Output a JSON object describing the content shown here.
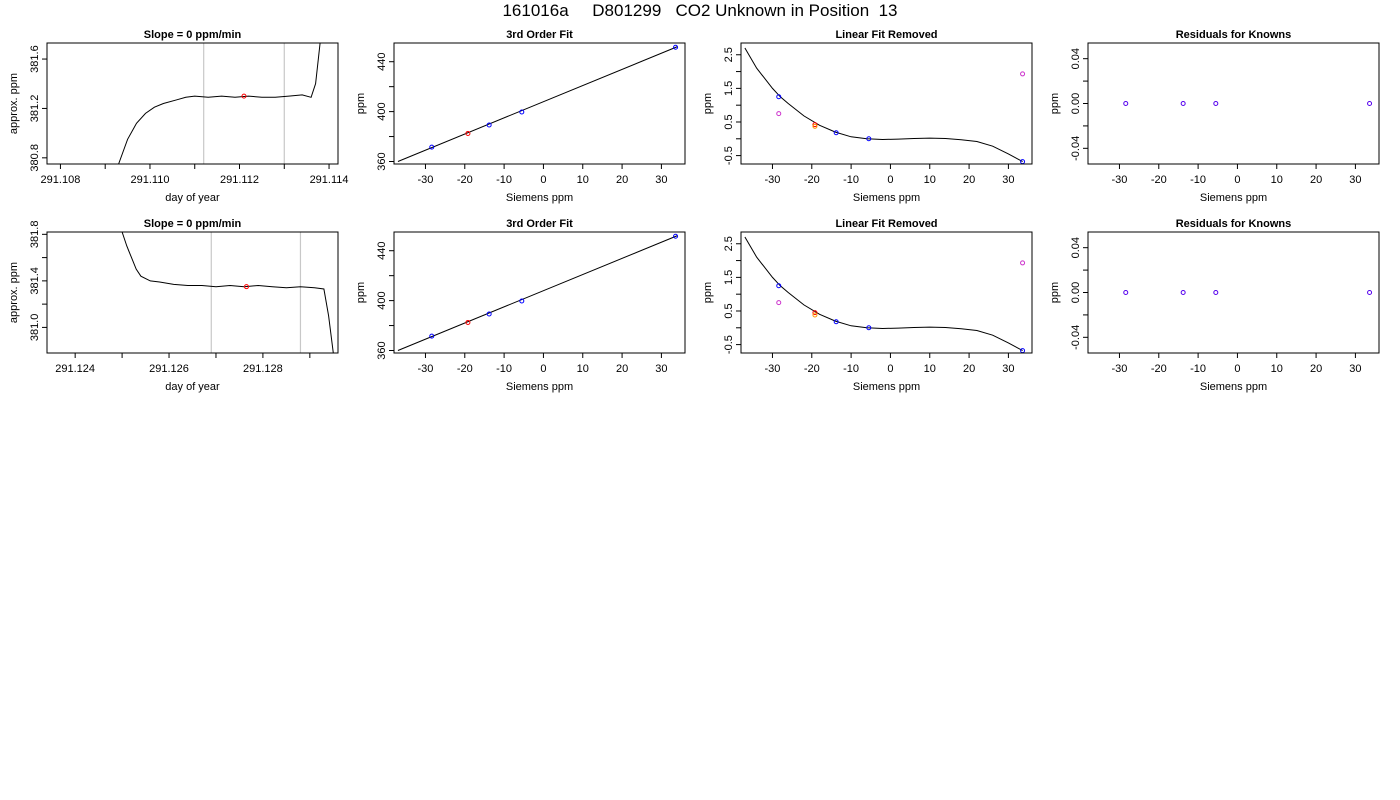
{
  "page": {
    "title": "161016a     D801299   CO2 Unknown in Position  13"
  },
  "chart_data": [
    {
      "type": "line",
      "title": "Slope =  0  ppm/min",
      "xlabel": "day of year",
      "ylabel": "approx. ppm",
      "xlim": [
        291.1077,
        291.1142
      ],
      "ylim": [
        380.75,
        381.73
      ],
      "xticks": [
        291.108,
        291.109,
        291.11,
        291.111,
        291.112,
        291.113,
        291.114
      ],
      "xticklabels": [
        "291.108",
        "",
        "291.110",
        "",
        "291.112",
        "",
        "291.114"
      ],
      "yticks": [
        380.8,
        381.2,
        381.6
      ],
      "yticklabels": [
        "380.8",
        "381.2",
        "381.6"
      ],
      "vlines": [
        291.1112,
        291.113
      ],
      "trace": [
        [
          291.1093,
          380.75
        ],
        [
          291.1095,
          380.95
        ],
        [
          291.1097,
          381.08
        ],
        [
          291.1099,
          381.16
        ],
        [
          291.1101,
          381.21
        ],
        [
          291.1103,
          381.24
        ],
        [
          291.1106,
          381.27
        ],
        [
          291.1108,
          381.29
        ],
        [
          291.111,
          381.3
        ],
        [
          291.1113,
          381.29
        ],
        [
          291.1116,
          381.3
        ],
        [
          291.1119,
          381.29
        ],
        [
          291.1122,
          381.3
        ],
        [
          291.1125,
          381.29
        ],
        [
          291.1128,
          381.29
        ],
        [
          291.1131,
          381.3
        ],
        [
          291.1134,
          381.31
        ],
        [
          291.1136,
          381.29
        ],
        [
          291.1137,
          381.4
        ],
        [
          291.1138,
          381.73
        ]
      ],
      "point": {
        "x": 291.1121,
        "y": 381.3,
        "color": "#ff0000"
      }
    },
    {
      "type": "scatter",
      "title": "3rd Order Fit",
      "xlabel": "Siemens ppm",
      "ylabel": "ppm",
      "xlim": [
        -38,
        36
      ],
      "ylim": [
        358,
        455
      ],
      "xticks": [
        -30,
        -20,
        -10,
        0,
        10,
        20,
        30
      ],
      "xticklabels": [
        "-30",
        "-20",
        "-10",
        "0",
        "10",
        "20",
        "30"
      ],
      "yticks": [
        360,
        400,
        440
      ],
      "yticklabels": [
        "360",
        "400",
        "440"
      ],
      "yminorticks": [
        380,
        420
      ],
      "line": [
        [
          -37,
          360
        ],
        [
          34,
          452
        ]
      ],
      "points": [
        {
          "x": -28.4,
          "y": 371.5,
          "color": "#0000ff"
        },
        {
          "x": -19.2,
          "y": 382.5,
          "color": "#ff0000"
        },
        {
          "x": -13.8,
          "y": 389.3,
          "color": "#0000ff"
        },
        {
          "x": -5.5,
          "y": 399.7,
          "color": "#0000ff"
        },
        {
          "x": 33.6,
          "y": 451.6,
          "color": "#0000ff"
        }
      ]
    },
    {
      "type": "scatter",
      "title": "Linear Fit Removed",
      "xlabel": "Siemens ppm",
      "ylabel": "ppm",
      "xlim": [
        -38,
        36
      ],
      "ylim": [
        -0.75,
        2.85
      ],
      "xticks": [
        -30,
        -20,
        -10,
        0,
        10,
        20,
        30
      ],
      "xticklabels": [
        "-30",
        "-20",
        "-10",
        "0",
        "10",
        "20",
        "30"
      ],
      "yticks": [
        -0.5,
        0.5,
        1.5,
        2.5
      ],
      "yticklabels": [
        "-0.5",
        "0.5",
        "1.5",
        "2.5"
      ],
      "yminorticks": [
        0,
        1,
        2
      ],
      "curve": [
        [
          -37,
          2.7
        ],
        [
          -34,
          2.1
        ],
        [
          -30,
          1.5
        ],
        [
          -28,
          1.25
        ],
        [
          -26,
          1.05
        ],
        [
          -22,
          0.68
        ],
        [
          -18,
          0.4
        ],
        [
          -14,
          0.2
        ],
        [
          -10,
          0.06
        ],
        [
          -6,
          0.0
        ],
        [
          -2,
          -0.02
        ],
        [
          2,
          -0.01
        ],
        [
          6,
          0.01
        ],
        [
          10,
          0.02
        ],
        [
          14,
          0.01
        ],
        [
          18,
          -0.03
        ],
        [
          22,
          -0.08
        ],
        [
          26,
          -0.22
        ],
        [
          30,
          -0.45
        ],
        [
          33.6,
          -0.68
        ]
      ],
      "points": [
        {
          "x": -28.4,
          "y": 1.25,
          "color": "#0000ff"
        },
        {
          "x": -28.4,
          "y": 0.75,
          "color": "#cc33cc"
        },
        {
          "x": -19.2,
          "y": 0.42,
          "color": "#ff0000"
        },
        {
          "x": -19.2,
          "y": 0.37,
          "color": "#ff9900"
        },
        {
          "x": -13.8,
          "y": 0.18,
          "color": "#0000ff"
        },
        {
          "x": -5.5,
          "y": 0.0,
          "color": "#0000ff"
        },
        {
          "x": 33.6,
          "y": 1.93,
          "color": "#cc33cc"
        },
        {
          "x": 33.6,
          "y": -0.68,
          "color": "#0000ff"
        }
      ]
    },
    {
      "type": "scatter",
      "title": "Residuals for Knowns",
      "xlabel": "Siemens ppm",
      "ylabel": "ppm",
      "xlim": [
        -38,
        36
      ],
      "ylim": [
        -0.054,
        0.054
      ],
      "xticks": [
        -30,
        -20,
        -10,
        0,
        10,
        20,
        30
      ],
      "xticklabels": [
        "-30",
        "-20",
        "-10",
        "0",
        "10",
        "20",
        "30"
      ],
      "yticks": [
        -0.04,
        0.0,
        0.04
      ],
      "yticklabels": [
        "-0.04",
        "0.00",
        "0.04"
      ],
      "yminorticks": [
        -0.02,
        0.02
      ],
      "points": [
        {
          "x": -28.4,
          "y": 0.0,
          "color": "#5500ee"
        },
        {
          "x": -13.8,
          "y": 0.0,
          "color": "#5500ee"
        },
        {
          "x": -5.5,
          "y": 0.0,
          "color": "#5500ee"
        },
        {
          "x": 33.6,
          "y": 0.0,
          "color": "#5500ee"
        }
      ]
    },
    {
      "type": "line",
      "title": "Slope =  0  ppm/min",
      "xlabel": "day of year",
      "ylabel": "approx. ppm",
      "xlim": [
        291.1234,
        291.1296
      ],
      "ylim": [
        380.78,
        381.82
      ],
      "xticks": [
        291.124,
        291.125,
        291.126,
        291.127,
        291.128,
        291.129
      ],
      "xticklabels": [
        "291.124",
        "",
        "291.126",
        "",
        "291.128",
        ""
      ],
      "yticks": [
        381.0,
        381.4,
        381.8
      ],
      "yticklabels": [
        "381.0",
        "381.4",
        "381.8"
      ],
      "yminorticks": [
        381.2,
        381.6
      ],
      "vlines": [
        291.1269,
        291.1288
      ],
      "trace": [
        [
          291.125,
          381.82
        ],
        [
          291.1251,
          381.7
        ],
        [
          291.1252,
          381.6
        ],
        [
          291.1253,
          381.5
        ],
        [
          291.1254,
          381.44
        ],
        [
          291.1256,
          381.4
        ],
        [
          291.1258,
          381.39
        ],
        [
          291.1261,
          381.37
        ],
        [
          291.1264,
          381.36
        ],
        [
          291.1267,
          381.36
        ],
        [
          291.127,
          381.35
        ],
        [
          291.1273,
          381.36
        ],
        [
          291.1276,
          381.35
        ],
        [
          291.1279,
          381.36
        ],
        [
          291.1282,
          381.35
        ],
        [
          291.1285,
          381.34
        ],
        [
          291.1288,
          381.35
        ],
        [
          291.1291,
          381.34
        ],
        [
          291.1293,
          381.33
        ],
        [
          291.1294,
          381.1
        ],
        [
          291.1295,
          380.78
        ]
      ],
      "point": {
        "x": 291.12765,
        "y": 381.35,
        "color": "#ff0000"
      }
    },
    {
      "type": "scatter",
      "title": "3rd Order Fit",
      "xlabel": "Siemens ppm",
      "ylabel": "ppm",
      "xlim": [
        -38,
        36
      ],
      "ylim": [
        358,
        455
      ],
      "xticks": [
        -30,
        -20,
        -10,
        0,
        10,
        20,
        30
      ],
      "xticklabels": [
        "-30",
        "-20",
        "-10",
        "0",
        "10",
        "20",
        "30"
      ],
      "yticks": [
        360,
        400,
        440
      ],
      "yticklabels": [
        "360",
        "400",
        "440"
      ],
      "yminorticks": [
        380,
        420
      ],
      "line": [
        [
          -37,
          360
        ],
        [
          34,
          452
        ]
      ],
      "points": [
        {
          "x": -28.4,
          "y": 371.5,
          "color": "#0000ff"
        },
        {
          "x": -19.2,
          "y": 382.5,
          "color": "#ff0000"
        },
        {
          "x": -13.8,
          "y": 389.3,
          "color": "#0000ff"
        },
        {
          "x": -5.5,
          "y": 399.7,
          "color": "#0000ff"
        },
        {
          "x": 33.6,
          "y": 451.6,
          "color": "#0000ff"
        }
      ]
    },
    {
      "type": "scatter",
      "title": "Linear Fit Removed",
      "xlabel": "Siemens ppm",
      "ylabel": "ppm",
      "xlim": [
        -38,
        36
      ],
      "ylim": [
        -0.75,
        2.85
      ],
      "xticks": [
        -30,
        -20,
        -10,
        0,
        10,
        20,
        30
      ],
      "xticklabels": [
        "-30",
        "-20",
        "-10",
        "0",
        "10",
        "20",
        "30"
      ],
      "yticks": [
        -0.5,
        0.5,
        1.5,
        2.5
      ],
      "yticklabels": [
        "-0.5",
        "0.5",
        "1.5",
        "2.5"
      ],
      "yminorticks": [
        0,
        1,
        2
      ],
      "curve": [
        [
          -37,
          2.7
        ],
        [
          -34,
          2.1
        ],
        [
          -30,
          1.5
        ],
        [
          -28,
          1.25
        ],
        [
          -26,
          1.05
        ],
        [
          -22,
          0.68
        ],
        [
          -18,
          0.4
        ],
        [
          -14,
          0.2
        ],
        [
          -10,
          0.06
        ],
        [
          -6,
          0.0
        ],
        [
          -2,
          -0.02
        ],
        [
          2,
          -0.01
        ],
        [
          6,
          0.01
        ],
        [
          10,
          0.02
        ],
        [
          14,
          0.01
        ],
        [
          18,
          -0.03
        ],
        [
          22,
          -0.08
        ],
        [
          26,
          -0.22
        ],
        [
          30,
          -0.45
        ],
        [
          33.6,
          -0.68
        ]
      ],
      "points": [
        {
          "x": -28.4,
          "y": 1.25,
          "color": "#0000ff"
        },
        {
          "x": -28.4,
          "y": 0.75,
          "color": "#cc33cc"
        },
        {
          "x": -19.2,
          "y": 0.45,
          "color": "#ff0000"
        },
        {
          "x": -19.2,
          "y": 0.38,
          "color": "#ff9900"
        },
        {
          "x": -13.8,
          "y": 0.18,
          "color": "#0000ff"
        },
        {
          "x": -5.5,
          "y": 0.0,
          "color": "#0000ff"
        },
        {
          "x": 33.6,
          "y": 1.93,
          "color": "#cc33cc"
        },
        {
          "x": 33.6,
          "y": -0.68,
          "color": "#0000ff"
        }
      ]
    },
    {
      "type": "scatter",
      "title": "Residuals for Knowns",
      "xlabel": "Siemens ppm",
      "ylabel": "ppm",
      "xlim": [
        -38,
        36
      ],
      "ylim": [
        -0.054,
        0.054
      ],
      "xticks": [
        -30,
        -20,
        -10,
        0,
        10,
        20,
        30
      ],
      "xticklabels": [
        "-30",
        "-20",
        "-10",
        "0",
        "10",
        "20",
        "30"
      ],
      "yticks": [
        -0.04,
        0.0,
        0.04
      ],
      "yticklabels": [
        "-0.04",
        "0.00",
        "0.04"
      ],
      "yminorticks": [
        -0.02,
        0.02
      ],
      "points": [
        {
          "x": -28.4,
          "y": 0.0,
          "color": "#5500ee"
        },
        {
          "x": -13.8,
          "y": 0.0,
          "color": "#5500ee"
        },
        {
          "x": -5.5,
          "y": 0.0,
          "color": "#5500ee"
        },
        {
          "x": 33.6,
          "y": 0.0,
          "color": "#5500ee"
        }
      ]
    }
  ]
}
